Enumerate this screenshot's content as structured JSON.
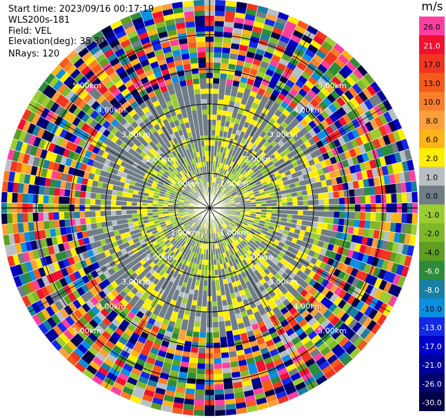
{
  "header": {
    "start_time": "Start time: 2023/09/16 00:17:19",
    "instrument": "WLS200s-181",
    "field": "Field: VEL",
    "elevation": "Elevation(deg): 35.30",
    "nrays": "NRays: 120"
  },
  "colorbar": {
    "unit": "m/s",
    "levels": [
      {
        "label": "26.0",
        "color": "#ff3fa0",
        "text_color": "#000000"
      },
      {
        "label": "21.0",
        "color": "#f01030",
        "text_color": "#ffffff"
      },
      {
        "label": "17.0",
        "color": "#f23420",
        "text_color": "#000000"
      },
      {
        "label": "13.0",
        "color": "#f55a1a",
        "text_color": "#000000"
      },
      {
        "label": "10.0",
        "color": "#f77e2a",
        "text_color": "#000000"
      },
      {
        "label": "8.0",
        "color": "#fa9f3a",
        "text_color": "#000000"
      },
      {
        "label": "6.0",
        "color": "#fcb416",
        "text_color": "#000000"
      },
      {
        "label": "2.0",
        "color": "#ffee00",
        "text_color": "#000000"
      },
      {
        "label": "1.0",
        "color": "#b8bfc4",
        "text_color": "#000000"
      },
      {
        "label": "0.0",
        "color": "#707d86",
        "text_color": "#000000"
      },
      {
        "label": "-1.0",
        "color": "#9bcd32",
        "text_color": "#000000"
      },
      {
        "label": "-2.0",
        "color": "#7fb82a",
        "text_color": "#000000"
      },
      {
        "label": "-4.0",
        "color": "#5f9e22",
        "text_color": "#000000"
      },
      {
        "label": "-6.0",
        "color": "#2e8b3a",
        "text_color": "#ffffff"
      },
      {
        "label": "-8.0",
        "color": "#1a7fa0",
        "text_color": "#ffffff"
      },
      {
        "label": "-10.0",
        "color": "#0b8fe3",
        "text_color": "#000000"
      },
      {
        "label": "-13.0",
        "color": "#1428e8",
        "text_color": "#ffffff"
      },
      {
        "label": "-17.0",
        "color": "#0000c8",
        "text_color": "#ffffff"
      },
      {
        "label": "-21.0",
        "color": "#00009a",
        "text_color": "#ffffff"
      },
      {
        "label": "-26.0",
        "color": "#000070",
        "text_color": "#ffffff"
      },
      {
        "label": "-30.0",
        "color": "#000045",
        "text_color": "#ffffff"
      }
    ]
  },
  "chart_data": {
    "type": "heatmap",
    "projection": "polar-ppi",
    "field": "VEL",
    "units": "m/s",
    "n_rays": 120,
    "ray_azimuth_step_deg": 3,
    "max_range_km": 6.0,
    "range_ring_labels": [
      {
        "range_km": 1.0,
        "label": "1.00km"
      },
      {
        "range_km": 2.0,
        "label": "2.00km"
      },
      {
        "range_km": 3.0,
        "label": "3.00km"
      },
      {
        "range_km": 4.0,
        "label": "4.00km"
      },
      {
        "range_km": 5.0,
        "label": "5.00km"
      }
    ],
    "regions_description_km": [
      {
        "range": [
          0.0,
          2.0
        ],
        "dominant_velocity": "mixed 0 / -1 / 2 m/s"
      },
      {
        "range": [
          2.0,
          3.5
        ],
        "dominant_velocity": "0 m/s with patches of 2 m/s and -1 m/s"
      },
      {
        "range": [
          3.5,
          6.0
        ],
        "dominant_velocity": "noise (all levels, -30 to 26 m/s)"
      }
    ]
  }
}
